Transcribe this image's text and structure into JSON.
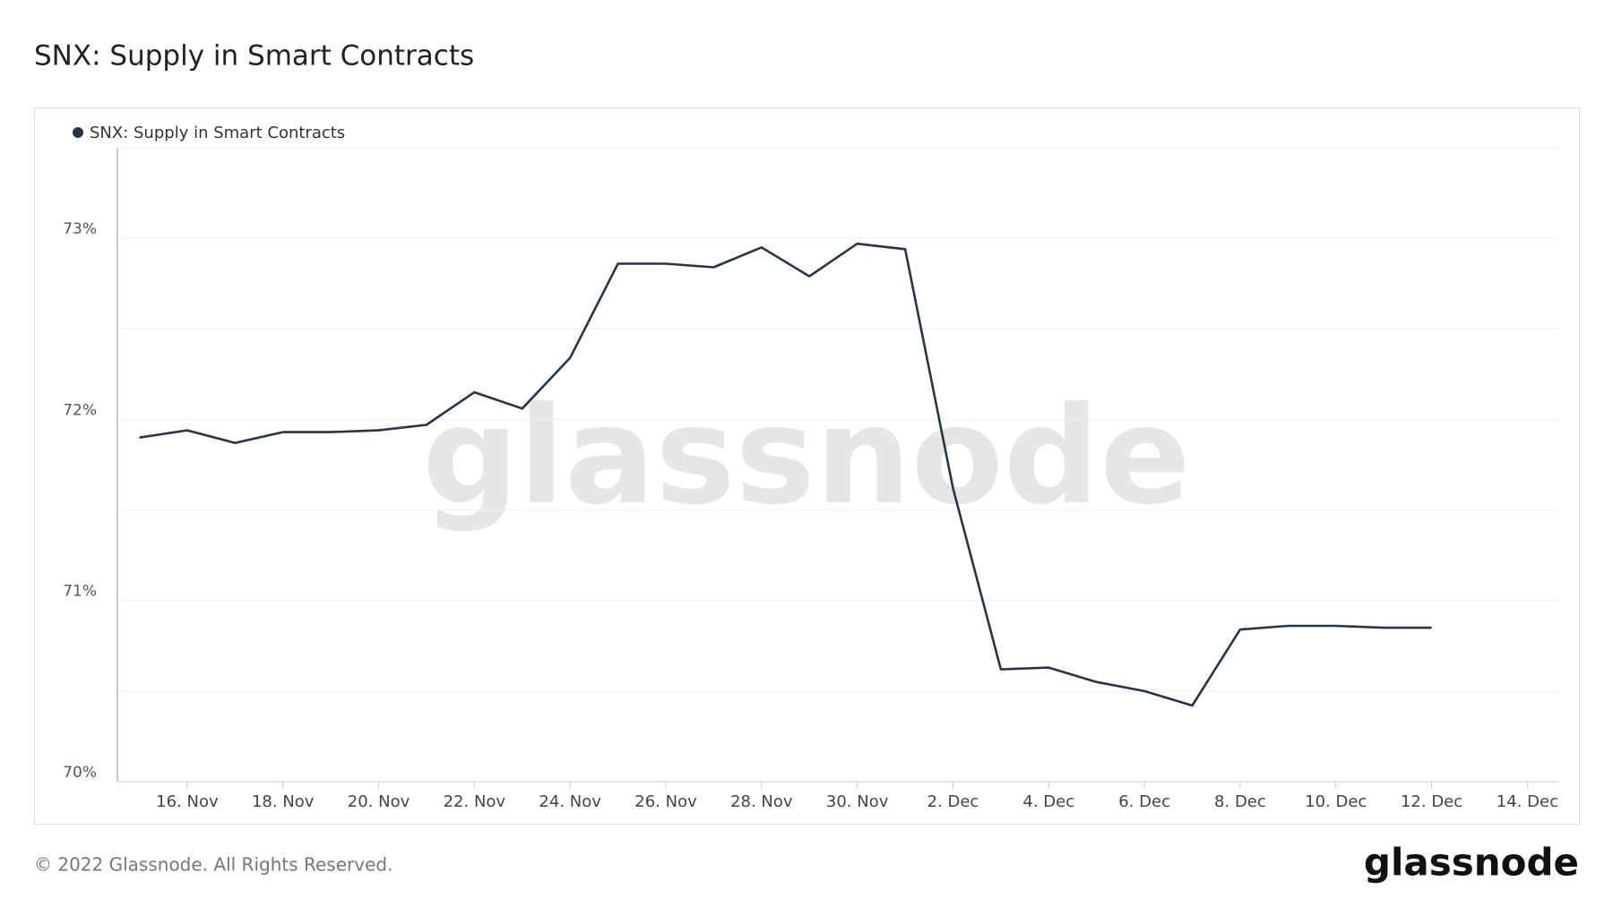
{
  "chart_data": {
    "type": "line",
    "title": "SNX: Supply in Smart Contracts",
    "watermark": "glassnode",
    "footer": "© 2022 Glassnode. All Rights Reserved.",
    "logo": "glassnode",
    "x": [
      "2022-11-15",
      "2022-11-16",
      "2022-11-17",
      "2022-11-18",
      "2022-11-19",
      "2022-11-20",
      "2022-11-21",
      "2022-11-22",
      "2022-11-23",
      "2022-11-24",
      "2022-11-25",
      "2022-11-26",
      "2022-11-27",
      "2022-11-28",
      "2022-11-29",
      "2022-11-30",
      "2022-12-01",
      "2022-12-02",
      "2022-12-03",
      "2022-12-04",
      "2022-12-05",
      "2022-12-06",
      "2022-12-07",
      "2022-12-08",
      "2022-12-09",
      "2022-12-10",
      "2022-12-11",
      "2022-12-12"
    ],
    "series": [
      {
        "name": "SNX: Supply in Smart Contracts",
        "color": "#253746",
        "values": [
          71.9,
          71.94,
          71.87,
          71.93,
          71.93,
          71.94,
          71.97,
          72.15,
          72.06,
          72.34,
          72.86,
          72.86,
          72.84,
          72.95,
          72.79,
          72.97,
          72.94,
          71.62,
          70.62,
          70.63,
          70.55,
          70.5,
          70.42,
          70.84,
          70.86,
          70.86,
          70.85,
          70.85
        ]
      }
    ],
    "xlim": [
      "2022-11-14T13:00",
      "2022-12-14T16:00"
    ],
    "xticks": [
      {
        "value": "2022-11-16",
        "label": "16. Nov"
      },
      {
        "value": "2022-11-18",
        "label": "18. Nov"
      },
      {
        "value": "2022-11-20",
        "label": "20. Nov"
      },
      {
        "value": "2022-11-22",
        "label": "22. Nov"
      },
      {
        "value": "2022-11-24",
        "label": "24. Nov"
      },
      {
        "value": "2022-11-26",
        "label": "26. Nov"
      },
      {
        "value": "2022-11-28",
        "label": "28. Nov"
      },
      {
        "value": "2022-11-30",
        "label": "30. Nov"
      },
      {
        "value": "2022-12-02",
        "label": "2. Dec"
      },
      {
        "value": "2022-12-04",
        "label": "4. Dec"
      },
      {
        "value": "2022-12-06",
        "label": "6. Dec"
      },
      {
        "value": "2022-12-08",
        "label": "8. Dec"
      },
      {
        "value": "2022-12-10",
        "label": "10. Dec"
      },
      {
        "value": "2022-12-12",
        "label": "12. Dec"
      },
      {
        "value": "2022-12-14",
        "label": "14. Dec"
      }
    ],
    "ylim": [
      70,
      73.5
    ],
    "yticks": [
      {
        "value": 70,
        "label": "70%"
      },
      {
        "value": 71,
        "label": "71%"
      },
      {
        "value": 72,
        "label": "72%"
      },
      {
        "value": 73,
        "label": "73%"
      }
    ],
    "minor_grid": [
      70.5,
      71.5,
      72.5,
      73.5
    ],
    "grid": true,
    "legend": "top-left"
  }
}
